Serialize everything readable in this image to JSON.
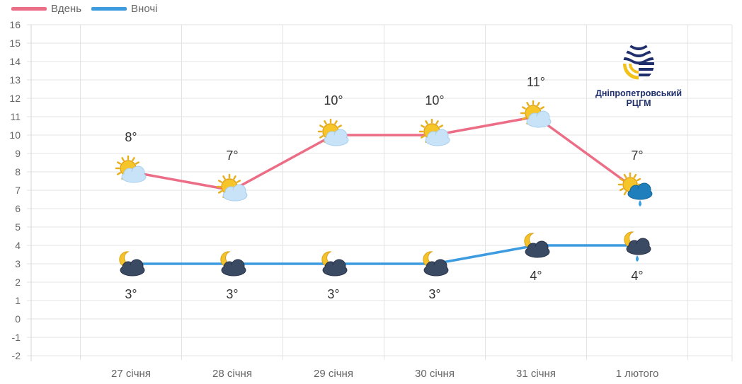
{
  "legend": {
    "day_label": "Вдень",
    "night_label": "Вночі"
  },
  "colors": {
    "day": "#ec6d86",
    "night": "#3d9be0",
    "grid": "#e3e3e3",
    "axis_text": "#666666",
    "temp_label": "#333333"
  },
  "logo": {
    "line1": "Дніпропетровський",
    "line2": "РЦГМ"
  },
  "chart_data": {
    "type": "line",
    "categories": [
      "27 січня",
      "28 січня",
      "29 січня",
      "30 січня",
      "31 січня",
      "1 лютого"
    ],
    "series": [
      {
        "name": "Вдень",
        "values": [
          8,
          7,
          10,
          10,
          11,
          7
        ],
        "labels": [
          "8°",
          "7°",
          "10°",
          "10°",
          "11°",
          "7°"
        ],
        "icons": [
          "sun-cloud-icon",
          "sun-cloud-icon",
          "sun-cloud-icon",
          "sun-cloud-icon",
          "sun-cloud-icon",
          "sun-rain-cloud-icon"
        ]
      },
      {
        "name": "Вночі",
        "values": [
          3,
          3,
          3,
          3,
          4,
          4
        ],
        "labels": [
          "3°",
          "3°",
          "3°",
          "3°",
          "4°",
          "4°"
        ],
        "icons": [
          "moon-cloud-icon",
          "moon-cloud-icon",
          "moon-cloud-icon",
          "moon-cloud-icon",
          "moon-cloud-icon",
          "moon-rain-cloud-icon"
        ]
      }
    ],
    "ylim": [
      -2,
      16
    ],
    "yticks": [
      16,
      15,
      14,
      13,
      12,
      11,
      10,
      9,
      8,
      7,
      6,
      5,
      4,
      3,
      2,
      1,
      0,
      -1,
      -2
    ],
    "grid": true,
    "legend_position": "top-left"
  }
}
